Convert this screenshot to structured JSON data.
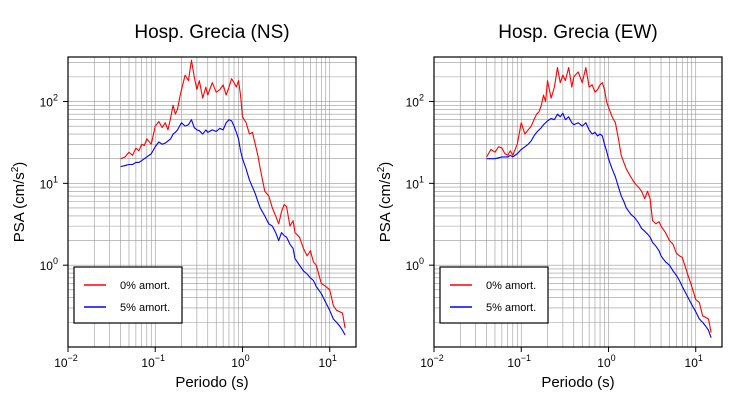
{
  "chart_data": [
    {
      "type": "line",
      "title": "Hosp. Grecia (NS)",
      "xlabel": "Periodo (s)",
      "ylabel": "PSA (cm/s²)",
      "xscale": "log",
      "yscale": "log",
      "xlim": [
        0.01,
        20
      ],
      "ylim": [
        0.1,
        350
      ],
      "grid": true,
      "legend_position": "lower-left",
      "xticks": [
        {
          "base": "10",
          "exp": "−2",
          "value": 0.01
        },
        {
          "base": "10",
          "exp": "−1",
          "value": 0.1
        },
        {
          "base": "10",
          "exp": "0",
          "value": 1
        },
        {
          "base": "10",
          "exp": "1",
          "value": 10
        }
      ],
      "yticks": [
        {
          "base": "10",
          "exp": "0",
          "value": 1
        },
        {
          "base": "10",
          "exp": "1",
          "value": 10
        },
        {
          "base": "10",
          "exp": "2",
          "value": 100
        }
      ],
      "series": [
        {
          "name": "0% amort.",
          "color": "#ff0000",
          "x": [
            0.04,
            0.045,
            0.05,
            0.055,
            0.06,
            0.065,
            0.07,
            0.075,
            0.08,
            0.09,
            0.1,
            0.11,
            0.12,
            0.13,
            0.14,
            0.15,
            0.16,
            0.17,
            0.18,
            0.19,
            0.2,
            0.22,
            0.24,
            0.26,
            0.28,
            0.3,
            0.32,
            0.35,
            0.38,
            0.4,
            0.45,
            0.5,
            0.55,
            0.6,
            0.65,
            0.7,
            0.75,
            0.8,
            0.85,
            0.9,
            0.95,
            1.0,
            1.1,
            1.2,
            1.3,
            1.4,
            1.5,
            1.6,
            1.8,
            2.0,
            2.2,
            2.4,
            2.6,
            2.8,
            3.0,
            3.2,
            3.5,
            3.8,
            4.0,
            4.5,
            5.0,
            5.5,
            6.0,
            6.5,
            7.0,
            8.0,
            9.0,
            10.0,
            11.0,
            12.0,
            13.0,
            14.0,
            15.0
          ],
          "y": [
            20,
            21,
            24,
            22,
            27,
            25,
            30,
            29,
            35,
            30,
            50,
            57,
            48,
            55,
            45,
            63,
            90,
            70,
            80,
            110,
            140,
            210,
            180,
            320,
            200,
            140,
            180,
            110,
            150,
            120,
            170,
            130,
            140,
            160,
            120,
            150,
            190,
            170,
            150,
            180,
            120,
            65,
            55,
            40,
            42,
            30,
            22,
            15,
            8,
            7,
            5,
            4,
            3.2,
            4.5,
            5.5,
            5.2,
            3.0,
            3.5,
            2.5,
            2.2,
            1.6,
            1.3,
            1.5,
            1.1,
            1.0,
            0.6,
            0.55,
            0.5,
            0.32,
            0.28,
            0.27,
            0.26,
            0.17
          ]
        },
        {
          "name": "5% amort.",
          "color": "#0000ff",
          "x": [
            0.04,
            0.045,
            0.05,
            0.055,
            0.06,
            0.065,
            0.07,
            0.075,
            0.08,
            0.09,
            0.1,
            0.11,
            0.12,
            0.13,
            0.14,
            0.15,
            0.16,
            0.17,
            0.18,
            0.19,
            0.2,
            0.22,
            0.24,
            0.26,
            0.28,
            0.3,
            0.32,
            0.35,
            0.38,
            0.4,
            0.45,
            0.5,
            0.55,
            0.6,
            0.65,
            0.7,
            0.75,
            0.8,
            0.85,
            0.9,
            0.95,
            1.0,
            1.1,
            1.2,
            1.3,
            1.4,
            1.5,
            1.6,
            1.8,
            2.0,
            2.2,
            2.4,
            2.6,
            2.8,
            3.0,
            3.2,
            3.5,
            3.8,
            4.0,
            4.5,
            5.0,
            5.5,
            6.0,
            6.5,
            7.0,
            8.0,
            9.0,
            10.0,
            11.0,
            12.0,
            13.0,
            14.0,
            15.0
          ],
          "y": [
            16,
            16.5,
            17,
            17,
            18,
            18,
            19,
            20,
            21,
            23,
            28,
            32,
            30,
            31,
            33,
            35,
            40,
            42,
            45,
            50,
            55,
            50,
            52,
            60,
            48,
            45,
            44,
            40,
            45,
            42,
            45,
            43,
            47,
            45,
            55,
            60,
            58,
            50,
            42,
            35,
            25,
            20,
            15,
            11,
            9,
            7.5,
            6,
            5,
            4,
            3.2,
            3.0,
            2.5,
            2.0,
            2.5,
            2.3,
            2.2,
            1.8,
            1.6,
            1.2,
            1.0,
            0.85,
            0.78,
            0.7,
            0.65,
            0.55,
            0.45,
            0.35,
            0.28,
            0.22,
            0.2,
            0.18,
            0.16,
            0.14
          ]
        }
      ]
    },
    {
      "type": "line",
      "title": "Hosp. Grecia (EW)",
      "xlabel": "Periodo (s)",
      "ylabel": "PSA (cm/s²)",
      "xscale": "log",
      "yscale": "log",
      "xlim": [
        0.01,
        20
      ],
      "ylim": [
        0.1,
        350
      ],
      "grid": true,
      "legend_position": "lower-left",
      "xticks": [
        {
          "base": "10",
          "exp": "−2",
          "value": 0.01
        },
        {
          "base": "10",
          "exp": "−1",
          "value": 0.1
        },
        {
          "base": "10",
          "exp": "0",
          "value": 1
        },
        {
          "base": "10",
          "exp": "1",
          "value": 10
        }
      ],
      "yticks": [
        {
          "base": "10",
          "exp": "0",
          "value": 1
        },
        {
          "base": "10",
          "exp": "1",
          "value": 10
        },
        {
          "base": "10",
          "exp": "2",
          "value": 100
        }
      ],
      "series": [
        {
          "name": "0% amort.",
          "color": "#ff0000",
          "x": [
            0.04,
            0.045,
            0.05,
            0.055,
            0.06,
            0.065,
            0.07,
            0.075,
            0.08,
            0.09,
            0.1,
            0.11,
            0.12,
            0.13,
            0.14,
            0.15,
            0.16,
            0.17,
            0.18,
            0.19,
            0.2,
            0.22,
            0.24,
            0.26,
            0.28,
            0.3,
            0.32,
            0.35,
            0.38,
            0.4,
            0.45,
            0.5,
            0.55,
            0.6,
            0.65,
            0.7,
            0.75,
            0.8,
            0.85,
            0.9,
            0.95,
            1.0,
            1.1,
            1.2,
            1.3,
            1.4,
            1.5,
            1.6,
            1.8,
            2.0,
            2.2,
            2.4,
            2.6,
            2.8,
            3.0,
            3.2,
            3.5,
            3.8,
            4.0,
            4.5,
            5.0,
            5.5,
            6.0,
            6.5,
            7.0,
            8.0,
            9.0,
            10.0,
            11.0,
            12.0,
            13.0,
            14.0,
            15.0
          ],
          "y": [
            21,
            26,
            24,
            28,
            27,
            23,
            22,
            25,
            22,
            30,
            55,
            40,
            45,
            50,
            60,
            70,
            75,
            90,
            120,
            100,
            180,
            110,
            150,
            260,
            170,
            210,
            180,
            260,
            150,
            200,
            230,
            170,
            260,
            150,
            160,
            130,
            140,
            160,
            170,
            140,
            100,
            85,
            65,
            55,
            35,
            22,
            18,
            15,
            12,
            10,
            9,
            8,
            6.5,
            8.0,
            6.5,
            3.5,
            3.2,
            3.4,
            3.0,
            2.5,
            2.0,
            1.8,
            1.4,
            1.3,
            1.25,
            0.8,
            0.55,
            0.38,
            0.35,
            0.24,
            0.23,
            0.22,
            0.15
          ]
        },
        {
          "name": "5% amort.",
          "color": "#0000ff",
          "x": [
            0.04,
            0.045,
            0.05,
            0.055,
            0.06,
            0.065,
            0.07,
            0.075,
            0.08,
            0.09,
            0.1,
            0.11,
            0.12,
            0.13,
            0.14,
            0.15,
            0.16,
            0.17,
            0.18,
            0.19,
            0.2,
            0.22,
            0.24,
            0.26,
            0.28,
            0.3,
            0.32,
            0.35,
            0.38,
            0.4,
            0.45,
            0.5,
            0.55,
            0.6,
            0.65,
            0.7,
            0.75,
            0.8,
            0.85,
            0.9,
            0.95,
            1.0,
            1.1,
            1.2,
            1.3,
            1.4,
            1.5,
            1.6,
            1.8,
            2.0,
            2.2,
            2.4,
            2.6,
            2.8,
            3.0,
            3.2,
            3.5,
            3.8,
            4.0,
            4.5,
            5.0,
            5.5,
            6.0,
            6.5,
            7.0,
            8.0,
            9.0,
            10.0,
            11.0,
            12.0,
            13.0,
            14.0,
            15.0
          ],
          "y": [
            20,
            20,
            20,
            20.5,
            21,
            21,
            21,
            22,
            21,
            23,
            26,
            28,
            30,
            33,
            38,
            42,
            45,
            48,
            52,
            55,
            58,
            62,
            60,
            70,
            65,
            72,
            60,
            65,
            55,
            52,
            55,
            50,
            55,
            45,
            40,
            42,
            38,
            40,
            38,
            30,
            25,
            20,
            15,
            12,
            9,
            7,
            6,
            5,
            4.2,
            3.8,
            3.3,
            2.8,
            2.6,
            2.4,
            2.2,
            1.9,
            1.7,
            1.5,
            1.3,
            1.1,
            1.0,
            0.85,
            0.75,
            0.65,
            0.55,
            0.42,
            0.33,
            0.27,
            0.22,
            0.2,
            0.18,
            0.16,
            0.13
          ]
        }
      ]
    }
  ]
}
